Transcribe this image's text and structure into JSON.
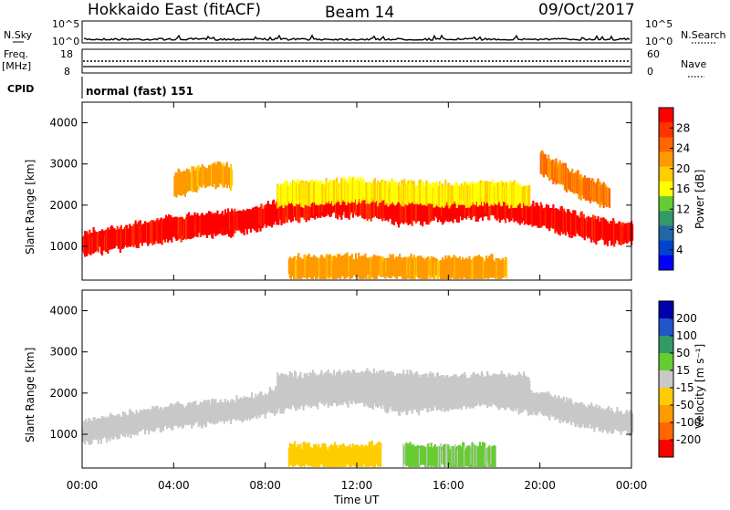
{
  "header": {
    "station": "Hokkaido East (fitACF)",
    "beam": "Beam 14",
    "date": "09/Oct/2017"
  },
  "top_panel": {
    "nsky_label": "N.Sky",
    "nsearch_label": "N.Search",
    "left_ticks": [
      "10^5",
      "10^0"
    ],
    "right_ticks": [
      "10^5",
      "10^0"
    ]
  },
  "freq_panel": {
    "freq_label": "Freq.",
    "freq_unit": "[MHz]",
    "nave_label": "Nave",
    "left_ticks": [
      "18",
      "8"
    ],
    "right_ticks": [
      "60",
      "0"
    ]
  },
  "cpid": {
    "label": "CPID",
    "mode": "normal (fast) 151"
  },
  "power_panel": {
    "ylabel": "Slant Range [km]",
    "colorbar_label": "Power [dB]",
    "colorbar_ticks": [
      "28",
      "24",
      "20",
      "16",
      "12",
      "8",
      "4"
    ],
    "colorbar_colors": [
      "#ff0000",
      "#ff3300",
      "#ff6600",
      "#ff9900",
      "#ffcc00",
      "#ffff00",
      "#66cc33",
      "#339966",
      "#2266aa",
      "#0044cc",
      "#0000ff"
    ]
  },
  "velocity_panel": {
    "ylabel": "Slant Range [km]",
    "colorbar_label": "Velocity [m s⁻¹]",
    "colorbar_ticks": [
      "200",
      "100",
      "50",
      "15",
      "-15",
      "-50",
      "-100",
      "-200"
    ],
    "colorbar_colors": [
      "#0000aa",
      "#2255cc",
      "#339966",
      "#66cc33",
      "#c8c8c8",
      "#ffcc00",
      "#ff9900",
      "#ff6600",
      "#ff0000"
    ]
  },
  "x_axis": {
    "label": "Time UT",
    "ticks": [
      "00:00",
      "04:00",
      "08:00",
      "12:00",
      "16:00",
      "20:00",
      "00:00"
    ]
  },
  "chart_data": [
    {
      "type": "heatmap",
      "title": "Power [dB]",
      "xlabel": "Time UT",
      "ylabel": "Slant Range [km]",
      "ylim": [
        180,
        4500
      ],
      "yticks": [
        1000,
        2000,
        3000,
        4000
      ],
      "clim": [
        0,
        30
      ],
      "bands": [
        {
          "x": [
            0,
            2,
            4,
            6,
            7,
            8,
            9,
            10,
            11,
            12,
            13,
            14,
            15,
            16,
            17,
            18,
            19,
            20,
            21,
            22,
            23,
            24
          ],
          "y": [
            1050,
            1250,
            1450,
            1550,
            1600,
            1750,
            1900,
            1950,
            2000,
            2000,
            1900,
            1800,
            1850,
            1900,
            1950,
            1950,
            1850,
            1750,
            1600,
            1450,
            1350,
            1300
          ],
          "value": 28
        },
        {
          "x": [
            4,
            5,
            6,
            6.5
          ],
          "y": [
            2500,
            2650,
            2750,
            2700
          ],
          "value": 20
        },
        {
          "x": [
            8.5,
            10,
            12,
            14,
            16,
            18,
            19.5
          ],
          "y": [
            2250,
            2300,
            2350,
            2300,
            2250,
            2300,
            2200
          ],
          "value": 16
        },
        {
          "x": [
            9,
            11,
            13,
            15,
            17,
            18.5
          ],
          "y": [
            500,
            480,
            500,
            470,
            450,
            480
          ],
          "value": 20
        },
        {
          "x": [
            20,
            21,
            22,
            23
          ],
          "y": [
            3000,
            2700,
            2400,
            2200
          ],
          "value": 22
        }
      ]
    },
    {
      "type": "heatmap",
      "title": "Velocity [m s⁻¹]",
      "xlabel": "Time UT",
      "ylabel": "Slant Range [km]",
      "ylim": [
        180,
        4500
      ],
      "yticks": [
        1000,
        2000,
        3000,
        4000
      ],
      "clim": [
        -200,
        200
      ],
      "bands": [
        {
          "x": [
            0,
            2,
            4,
            6,
            7,
            8,
            9,
            10,
            11,
            12,
            13,
            14,
            15,
            16,
            17,
            18,
            19,
            20,
            21,
            22,
            23,
            24
          ],
          "y": [
            1050,
            1250,
            1450,
            1550,
            1600,
            1750,
            1900,
            1950,
            2000,
            2000,
            1900,
            1800,
            1850,
            1900,
            1950,
            1950,
            1850,
            1750,
            1600,
            1450,
            1350,
            1300
          ],
          "value": 0
        },
        {
          "x": [
            8.5,
            10,
            12,
            14,
            16,
            18,
            19.5
          ],
          "y": [
            2150,
            2200,
            2250,
            2200,
            2150,
            2200,
            2150
          ],
          "value": 0
        },
        {
          "x": [
            9,
            11,
            13
          ],
          "y": [
            480,
            460,
            480
          ],
          "value": -40
        },
        {
          "x": [
            14,
            16,
            18
          ],
          "y": [
            470,
            450,
            470
          ],
          "value": 30
        }
      ]
    }
  ]
}
